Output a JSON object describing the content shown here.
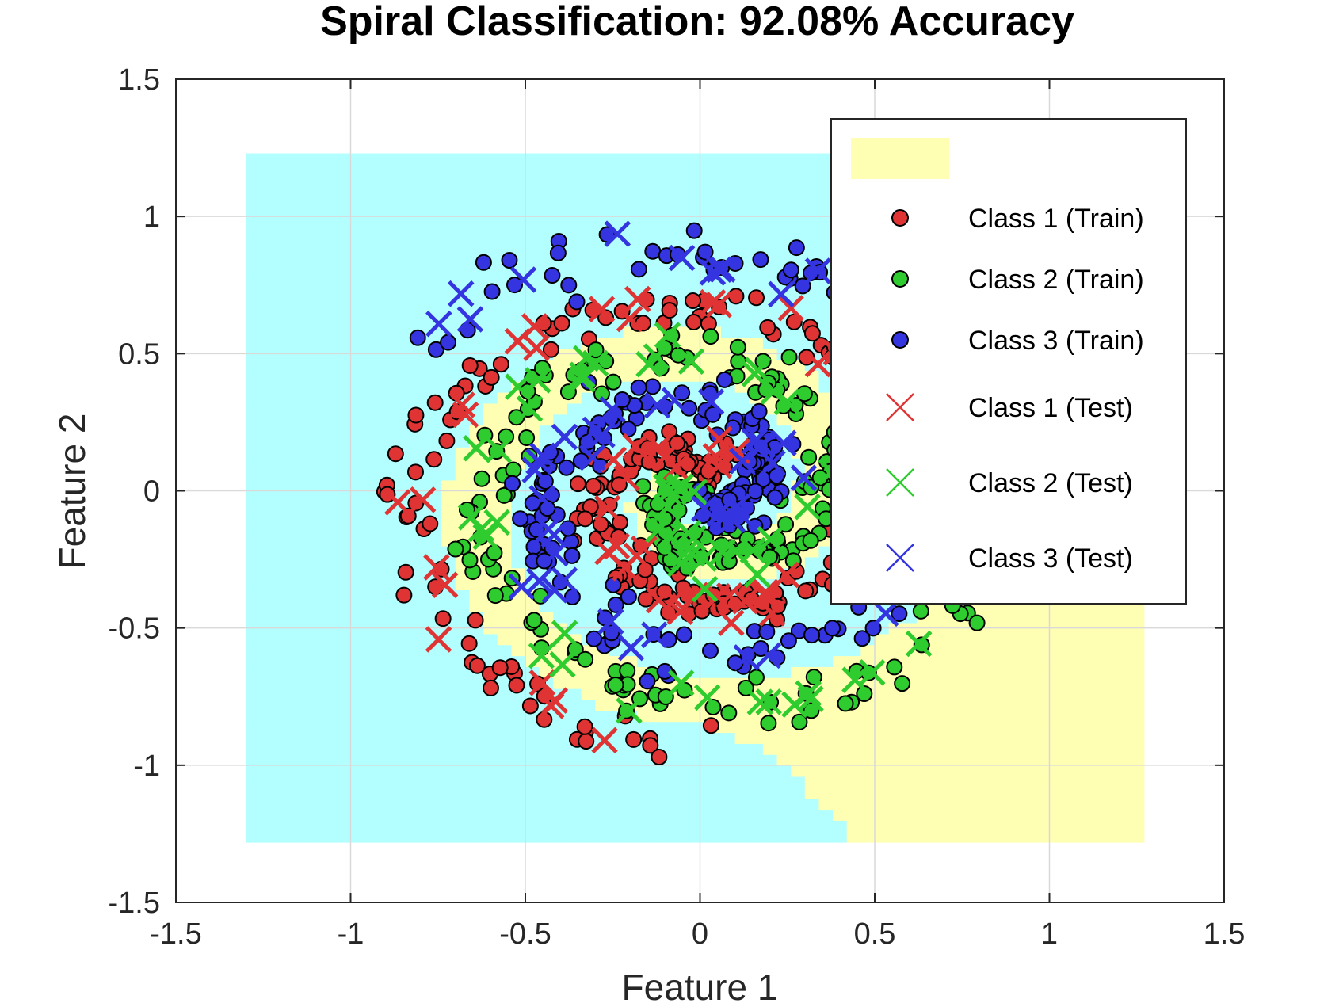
{
  "chart_data": {
    "type": "scatter",
    "title": "Spiral Classification: 92.08% Accuracy",
    "xlabel": "Feature 1",
    "ylabel": "Feature 2",
    "xlim": [
      -1.5,
      1.5
    ],
    "ylim": [
      -1.5,
      1.5
    ],
    "grid": true,
    "x_ticks": [
      -1.5,
      -1,
      -0.5,
      0,
      0.5,
      1,
      1.5
    ],
    "y_ticks": [
      -1.5,
      -1,
      -0.5,
      0,
      0.5,
      1,
      1.5
    ],
    "x_tick_labels": [
      "-1.5",
      "-1",
      "-0.5",
      "0",
      "0.5",
      "1",
      "1.5"
    ],
    "y_tick_labels": [
      "-1.5",
      "-1",
      "-0.5",
      "0",
      "0.5",
      "1",
      "1.5"
    ],
    "decision_region": {
      "x_range": [
        -1.3,
        1.27
      ],
      "y_range": [
        -1.28,
        1.23
      ],
      "colors": {
        "class1": "#b3ffff",
        "class2": "#ffffb3"
      }
    },
    "legend_position": "top-right",
    "legend": [
      {
        "label": "",
        "marker": "patch",
        "color": "#ffffb3"
      },
      {
        "label": "Class 1 (Train)",
        "marker": "circle",
        "color": "#e03434"
      },
      {
        "label": "Class 2 (Train)",
        "marker": "circle",
        "color": "#2ecc2e"
      },
      {
        "label": "Class 3 (Train)",
        "marker": "circle",
        "color": "#3434e0"
      },
      {
        "label": "Class 1 (Test)",
        "marker": "x",
        "color": "#e03434"
      },
      {
        "label": "Class 2 (Test)",
        "marker": "x",
        "color": "#2ecc2e"
      },
      {
        "label": "Class 3 (Test)",
        "marker": "x",
        "color": "#3434e0"
      }
    ],
    "spiral_params": {
      "r_max": 0.95,
      "turns": 1.75,
      "base_angles_deg": [
        0,
        120,
        240
      ]
    },
    "series": [
      {
        "name": "Class 1 (Train)",
        "class": 1,
        "split": "train",
        "color": "#e03434",
        "marker": "circle",
        "count": 240
      },
      {
        "name": "Class 2 (Train)",
        "class": 2,
        "split": "train",
        "color": "#2ecc2e",
        "marker": "circle",
        "count": 240
      },
      {
        "name": "Class 3 (Train)",
        "class": 3,
        "split": "train",
        "color": "#3434e0",
        "marker": "circle",
        "count": 240
      },
      {
        "name": "Class 1 (Test)",
        "class": 1,
        "split": "test",
        "color": "#e03434",
        "marker": "x",
        "count": 60
      },
      {
        "name": "Class 2 (Test)",
        "class": 2,
        "split": "test",
        "color": "#2ecc2e",
        "marker": "x",
        "count": 60
      },
      {
        "name": "Class 3 (Test)",
        "class": 3,
        "split": "test",
        "color": "#3434e0",
        "marker": "x",
        "count": 60
      }
    ]
  }
}
